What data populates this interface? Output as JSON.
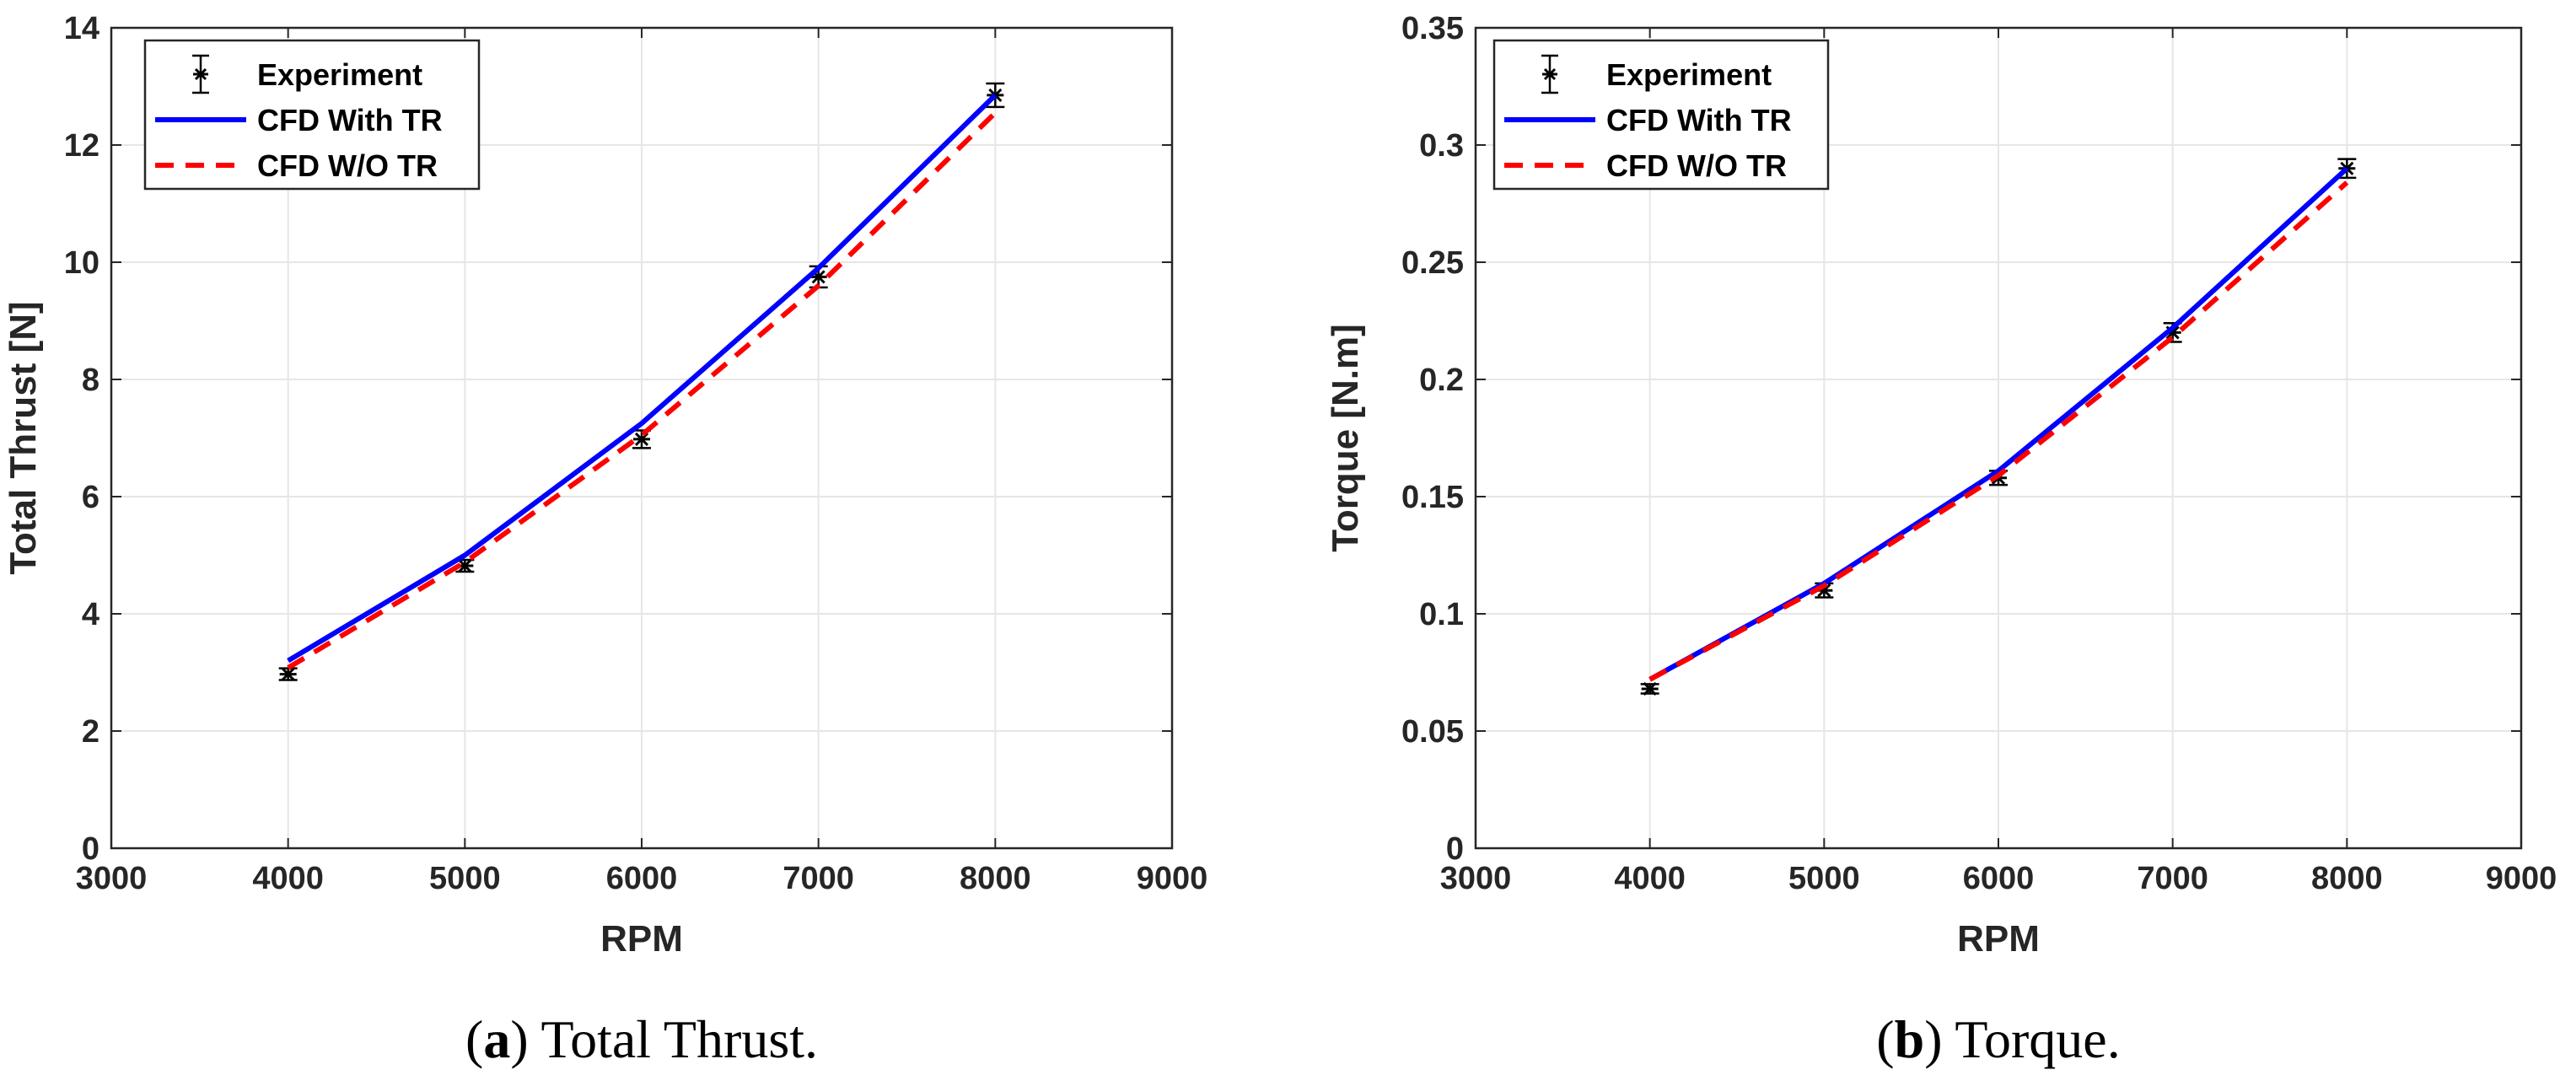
{
  "colors": {
    "experiment": "#000000",
    "cfd_with_tr": "#0000ff",
    "cfd_wo_tr": "#ff0000",
    "grid": "#e6e6e6",
    "axis": "#262626"
  },
  "chart_data": [
    {
      "type": "line",
      "id": "a",
      "caption_label": "a",
      "caption_text": "Total Thrust.",
      "xlabel": "RPM",
      "ylabel": "Total Thrust [N]",
      "xlim": [
        3000,
        9000
      ],
      "ylim": [
        0,
        14
      ],
      "xticks": [
        3000,
        4000,
        5000,
        6000,
        7000,
        8000,
        9000
      ],
      "xtick_labels": [
        "3000",
        "4000",
        "5000",
        "6000",
        "7000",
        "8000",
        "9000"
      ],
      "yticks": [
        0,
        2,
        4,
        6,
        8,
        10,
        12,
        14
      ],
      "ytick_labels": [
        "0",
        "2",
        "4",
        "6",
        "8",
        "10",
        "12",
        "14"
      ],
      "grid": true,
      "legend_position": "top-left",
      "series": [
        {
          "name": "Experiment",
          "style": "errorbar",
          "x": [
            4000,
            5000,
            6000,
            7000,
            8000
          ],
          "y": [
            2.97,
            4.82,
            6.98,
            9.75,
            12.85
          ],
          "err": [
            0.1,
            0.1,
            0.15,
            0.18,
            0.2
          ]
        },
        {
          "name": "CFD With TR",
          "style": "solid",
          "x": [
            4000,
            5000,
            6000,
            7000,
            8000
          ],
          "y": [
            3.2,
            5.0,
            7.25,
            9.9,
            12.85
          ]
        },
        {
          "name": "CFD W/O TR",
          "style": "dashed",
          "x": [
            4000,
            5000,
            6000,
            7000,
            8000
          ],
          "y": [
            3.08,
            4.88,
            7.05,
            9.6,
            12.55
          ]
        }
      ]
    },
    {
      "type": "line",
      "id": "b",
      "caption_label": "b",
      "caption_text": "Torque.",
      "xlabel": "RPM",
      "ylabel": "Torque [N.m]",
      "xlim": [
        3000,
        9000
      ],
      "ylim": [
        0,
        0.35
      ],
      "xticks": [
        3000,
        4000,
        5000,
        6000,
        7000,
        8000,
        9000
      ],
      "xtick_labels": [
        "3000",
        "4000",
        "5000",
        "6000",
        "7000",
        "8000",
        "9000"
      ],
      "yticks": [
        0,
        0.05,
        0.1,
        0.15,
        0.2,
        0.25,
        0.3,
        0.35
      ],
      "ytick_labels": [
        "0",
        "0.05",
        "0.1",
        "0.15",
        "0.2",
        "0.25",
        "0.3",
        "0.35"
      ],
      "grid": true,
      "legend_position": "top-left",
      "series": [
        {
          "name": "Experiment",
          "style": "errorbar",
          "x": [
            4000,
            5000,
            6000,
            7000,
            8000
          ],
          "y": [
            0.068,
            0.11,
            0.158,
            0.22,
            0.29
          ],
          "err": [
            0.002,
            0.003,
            0.003,
            0.004,
            0.004
          ]
        },
        {
          "name": "CFD With TR",
          "style": "solid",
          "x": [
            4000,
            5000,
            6000,
            7000,
            8000
          ],
          "y": [
            0.072,
            0.113,
            0.161,
            0.222,
            0.29
          ]
        },
        {
          "name": "CFD W/O TR",
          "style": "dashed",
          "x": [
            4000,
            5000,
            6000,
            7000,
            8000
          ],
          "y": [
            0.072,
            0.112,
            0.159,
            0.218,
            0.284
          ]
        }
      ]
    }
  ]
}
